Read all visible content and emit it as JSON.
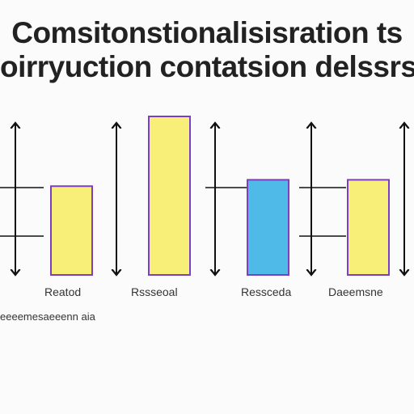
{
  "chart_data": {
    "type": "bar",
    "title_line_1": "Comsitonstionalisisration ts",
    "title_line_2": "oirryuction contatsion delssrs",
    "categories": [
      "Reatod",
      "Rssseoal",
      "Ressceda",
      "Daeemsne"
    ],
    "caption": "eeeemesaeeenn aia",
    "values": [
      0.56,
      1.0,
      0.6,
      0.6
    ],
    "series_colors": [
      "#f8ef78",
      "#f8ef78",
      "#4fb9e8",
      "#f8ef78"
    ],
    "bar_outline": "#7b3fbf",
    "axis_color": "#111111",
    "ylim": [
      0,
      1
    ],
    "grid": false,
    "legend": "none"
  }
}
